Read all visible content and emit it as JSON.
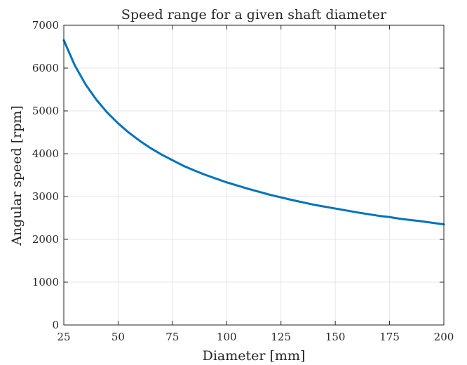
{
  "chart_data": {
    "type": "line",
    "title": "Speed range for a given shaft diameter",
    "xlabel": "Diameter [mm]",
    "ylabel": "Angular speed [rpm]",
    "xlim": [
      25,
      200
    ],
    "ylim": [
      0,
      7000
    ],
    "xticks": [
      "25",
      "50",
      "75",
      "100",
      "125",
      "150",
      "175",
      "200"
    ],
    "yticks": [
      "0",
      "1000",
      "2000",
      "3000",
      "4000",
      "5000",
      "6000",
      "7000"
    ],
    "grid": true,
    "legend": "none",
    "series": [
      {
        "color": "#0072bd",
        "x": [
          25,
          30,
          35,
          40,
          45,
          50,
          55,
          60,
          65,
          70,
          75,
          80,
          85,
          90,
          95,
          100,
          110,
          120,
          125,
          130,
          140,
          150,
          160,
          170,
          175,
          180,
          190,
          200
        ],
        "y": [
          6650,
          6070,
          5620,
          5260,
          4960,
          4710,
          4490,
          4300,
          4130,
          3980,
          3850,
          3720,
          3610,
          3510,
          3420,
          3330,
          3180,
          3040,
          2980,
          2920,
          2810,
          2720,
          2630,
          2550,
          2520,
          2480,
          2420,
          2350
        ]
      }
    ],
    "colors": {
      "axis": "#262626",
      "grid": "#e6e6e6",
      "line": "#0072bd"
    }
  }
}
